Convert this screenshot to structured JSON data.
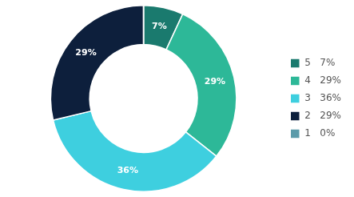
{
  "chart_data": {
    "type": "donut",
    "categories": [
      "5   7%",
      "4   29%",
      "3   36%",
      "2   29%",
      "1   0%"
    ],
    "values": [
      7,
      29,
      36,
      29,
      0.01
    ],
    "value_labels": [
      "7%",
      "29%",
      "36%",
      "29%",
      null
    ],
    "data_labels": true,
    "colors": [
      "#1a7a6e",
      "#2db898",
      "#3ecfdf",
      "#0d1f3c",
      "#5b9baa"
    ],
    "legend": "right"
  }
}
